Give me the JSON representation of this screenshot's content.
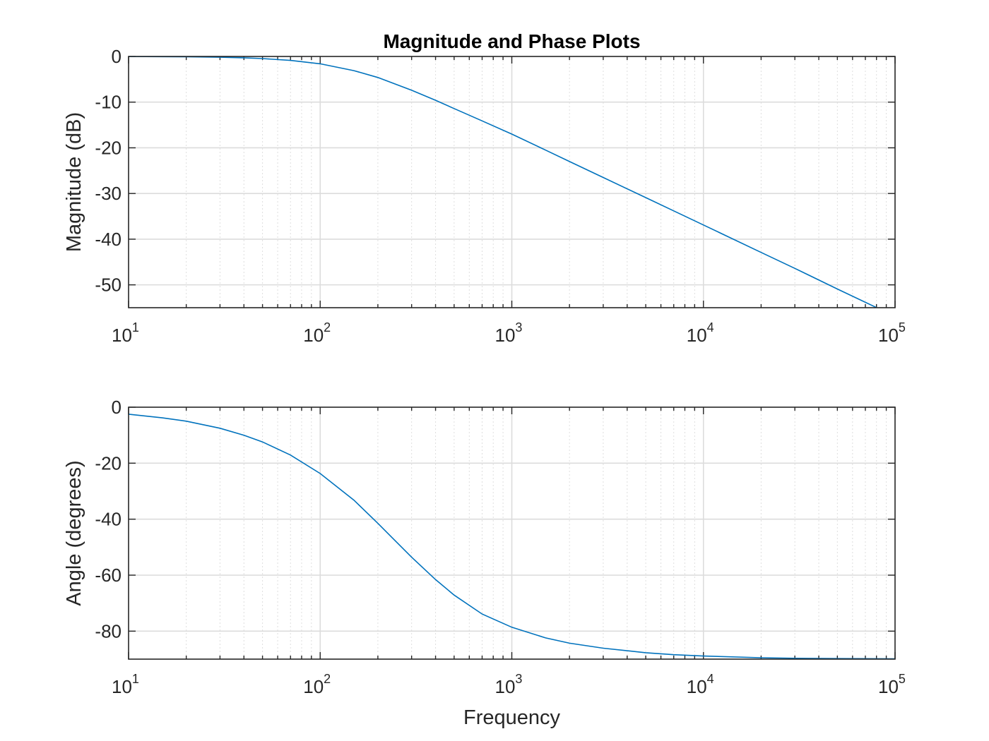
{
  "chart_data": [
    {
      "type": "line",
      "title": "Magnitude and Phase Plots",
      "xlabel": "",
      "ylabel": "Magnitude (dB)",
      "xscale": "log",
      "xlim": [
        10,
        100000
      ],
      "ylim": [
        -55,
        0
      ],
      "xticks": [
        {
          "base": "10",
          "exp": "1"
        },
        {
          "base": "10",
          "exp": "2"
        },
        {
          "base": "10",
          "exp": "3"
        },
        {
          "base": "10",
          "exp": "4"
        },
        {
          "base": "10",
          "exp": "5"
        }
      ],
      "yticks": [
        "0",
        "-10",
        "-20",
        "-30",
        "-40",
        "-50"
      ],
      "grid": true,
      "series": [
        {
          "color": "#0072bd",
          "x": [
            10,
            15,
            20,
            30,
            40,
            50,
            70,
            100,
            150,
            200,
            300,
            400,
            500,
            700,
            1000,
            1500,
            2000,
            3000,
            5000,
            7000,
            10000,
            20000,
            30000,
            50000,
            100000
          ],
          "y": [
            -0.02,
            -0.05,
            -0.08,
            -0.17,
            -0.3,
            -0.46,
            -0.87,
            -1.6,
            -3.1,
            -4.6,
            -7.4,
            -9.6,
            -11.4,
            -14.1,
            -17.0,
            -20.5,
            -23.0,
            -26.5,
            -30.9,
            -33.8,
            -36.9,
            -42.9,
            -46.4,
            -50.9,
            -56.9
          ]
        }
      ]
    },
    {
      "type": "line",
      "title": "",
      "xlabel": "Frequency",
      "ylabel": "Angle (degrees)",
      "xscale": "log",
      "xlim": [
        10,
        100000
      ],
      "ylim": [
        -90,
        0
      ],
      "xticks": [
        {
          "base": "10",
          "exp": "1"
        },
        {
          "base": "10",
          "exp": "2"
        },
        {
          "base": "10",
          "exp": "3"
        },
        {
          "base": "10",
          "exp": "4"
        },
        {
          "base": "10",
          "exp": "5"
        }
      ],
      "yticks": [
        "0",
        "-20",
        "-40",
        "-60",
        "-80"
      ],
      "grid": true,
      "series": [
        {
          "color": "#0072bd",
          "x": [
            10,
            15,
            20,
            30,
            40,
            50,
            70,
            100,
            150,
            200,
            300,
            400,
            500,
            700,
            1000,
            1500,
            2000,
            3000,
            5000,
            7000,
            10000,
            20000,
            30000,
            50000,
            100000
          ],
          "y": [
            -2.5,
            -3.8,
            -5.0,
            -7.5,
            -10.0,
            -12.4,
            -17.1,
            -23.7,
            -33.2,
            -41.5,
            -53.6,
            -61.6,
            -67.1,
            -73.9,
            -78.6,
            -82.4,
            -84.3,
            -86.1,
            -87.7,
            -88.4,
            -88.9,
            -89.5,
            -89.7,
            -89.8,
            -89.9
          ]
        }
      ]
    }
  ]
}
